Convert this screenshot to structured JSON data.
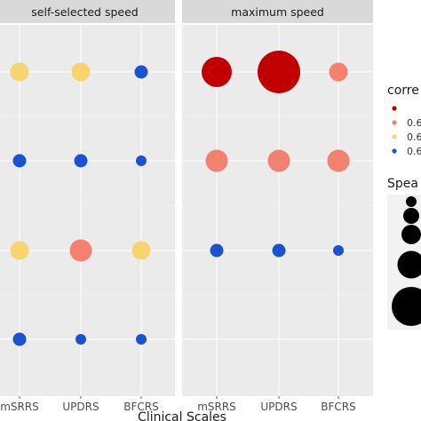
{
  "chart_data": {
    "type": "scatter",
    "xlabel": "Clinical Scales",
    "categories": [
      "mSRRS",
      "UPDRS",
      "BFCRS"
    ],
    "rows": [
      "r1",
      "r2",
      "r3",
      "r4"
    ],
    "facets": [
      {
        "title": "self-selected speed",
        "points": [
          {
            "x": "mSRRS",
            "row": "r1",
            "color_class": "yellow",
            "size_class": 2
          },
          {
            "x": "UPDRS",
            "row": "r1",
            "color_class": "yellow",
            "size_class": 2
          },
          {
            "x": "BFCRS",
            "row": "r1",
            "color_class": "blue",
            "size_class": 1
          },
          {
            "x": "mSRRS",
            "row": "r2",
            "color_class": "blue",
            "size_class": 1
          },
          {
            "x": "UPDRS",
            "row": "r2",
            "color_class": "blue",
            "size_class": 1
          },
          {
            "x": "BFCRS",
            "row": "r2",
            "color_class": "blue",
            "size_class": 0
          },
          {
            "x": "mSRRS",
            "row": "r3",
            "color_class": "yellow",
            "size_class": 2
          },
          {
            "x": "UPDRS",
            "row": "r3",
            "color_class": "salmon",
            "size_class": 3
          },
          {
            "x": "BFCRS",
            "row": "r3",
            "color_class": "yellow",
            "size_class": 2
          },
          {
            "x": "mSRRS",
            "row": "r4",
            "color_class": "blue",
            "size_class": 1
          },
          {
            "x": "UPDRS",
            "row": "r4",
            "color_class": "blue",
            "size_class": 0
          },
          {
            "x": "BFCRS",
            "row": "r4",
            "color_class": "blue",
            "size_class": 0
          }
        ]
      },
      {
        "title": "maximum speed",
        "points": [
          {
            "x": "mSRRS",
            "row": "r1",
            "color_class": "darkred",
            "size_class": 4
          },
          {
            "x": "UPDRS",
            "row": "r1",
            "color_class": "darkred",
            "size_class": 5
          },
          {
            "x": "BFCRS",
            "row": "r1",
            "color_class": "salmon",
            "size_class": 2
          },
          {
            "x": "mSRRS",
            "row": "r2",
            "color_class": "salmon",
            "size_class": 3
          },
          {
            "x": "UPDRS",
            "row": "r2",
            "color_class": "salmon",
            "size_class": 3
          },
          {
            "x": "BFCRS",
            "row": "r2",
            "color_class": "salmon",
            "size_class": 3
          },
          {
            "x": "mSRRS",
            "row": "r3",
            "color_class": "blue",
            "size_class": 1
          },
          {
            "x": "UPDRS",
            "row": "r3",
            "color_class": "blue",
            "size_class": 1
          },
          {
            "x": "BFCRS",
            "row": "r3",
            "color_class": "blue",
            "size_class": 0
          }
        ]
      }
    ],
    "legend_color": {
      "title": "corre",
      "entries": [
        {
          "color_class": "darkred",
          "label": ""
        },
        {
          "color_class": "salmon",
          "label": "0.6"
        },
        {
          "color_class": "yellow",
          "label": "0.6"
        },
        {
          "color_class": "blue",
          "label": "0.6"
        }
      ]
    },
    "legend_size": {
      "title": "Spea",
      "size_classes": [
        1,
        2,
        3,
        4,
        5
      ]
    },
    "colors": {
      "darkred": "#c00000",
      "salmon": "#f4806e",
      "yellow": "#f7d46e",
      "blue": "#1a53cf",
      "panel": "#ebebeb",
      "strip": "#d9d9d9"
    },
    "grid": true,
    "legend_position": "right"
  }
}
